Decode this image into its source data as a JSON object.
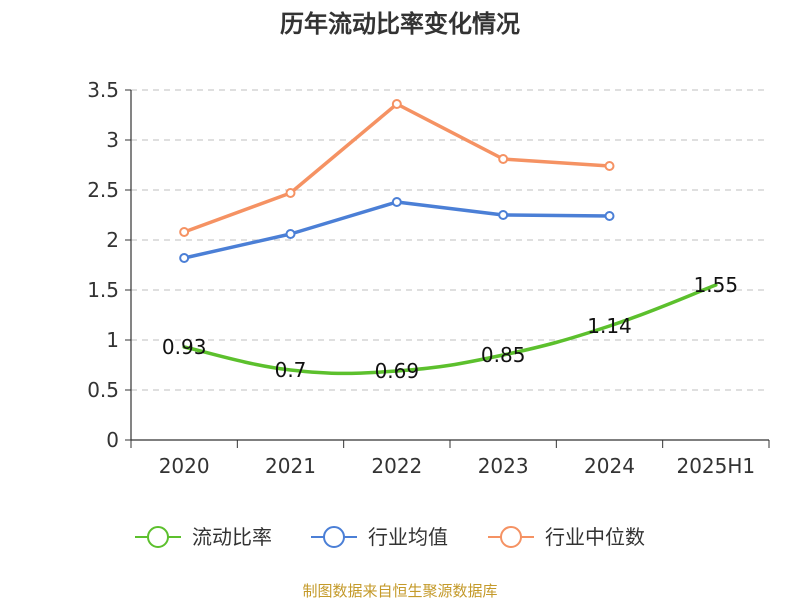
{
  "chart_data": {
    "type": "line",
    "title": "历年流动比率变化情况",
    "categories": [
      "2020",
      "2021",
      "2022",
      "2023",
      "2024",
      "2025H1"
    ],
    "ylim": [
      0,
      3.5
    ],
    "yticks": [
      "0",
      "0.5",
      "1",
      "1.5",
      "2",
      "2.5",
      "3",
      "3.5"
    ],
    "grid": true,
    "legend_position": "bottom",
    "series": [
      {
        "name": "流动比率",
        "color": "#5cc02d",
        "smooth": true,
        "markers": false,
        "show_labels": true,
        "values": [
          0.93,
          0.7,
          0.69,
          0.85,
          1.14,
          1.55
        ],
        "labels": [
          "0.93",
          "0.7",
          "0.69",
          "0.85",
          "1.14",
          "1.55"
        ]
      },
      {
        "name": "行业均值",
        "color": "#4b7fd6",
        "smooth": false,
        "markers": true,
        "show_labels": false,
        "values": [
          1.82,
          2.06,
          2.38,
          2.25,
          2.24,
          null
        ]
      },
      {
        "name": "行业中位数",
        "color": "#f59263",
        "smooth": false,
        "markers": true,
        "show_labels": false,
        "values": [
          2.08,
          2.47,
          3.36,
          2.81,
          2.74,
          null
        ]
      }
    ]
  },
  "source": {
    "text": "制图数据来自恒生聚源数据库",
    "color": "#c49a2a"
  }
}
